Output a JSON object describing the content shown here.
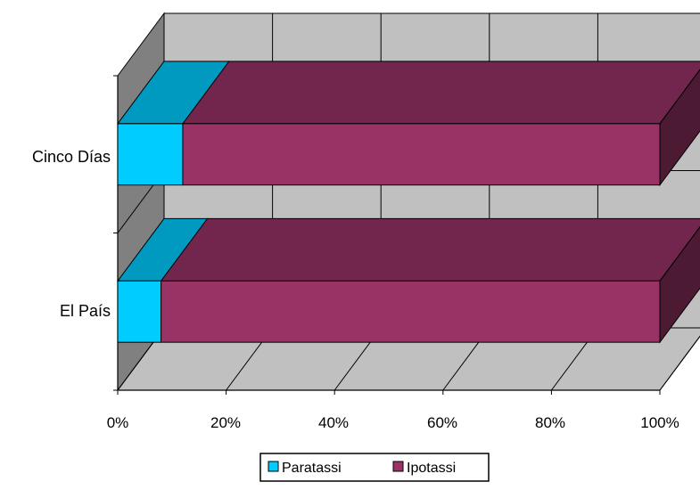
{
  "chart_data": {
    "type": "bar",
    "orientation": "horizontal",
    "stacking": "percent",
    "three_d": true,
    "categories": [
      "El País",
      "Cinco Días"
    ],
    "series": [
      {
        "name": "Paratassi",
        "values": [
          8,
          12
        ],
        "color": "#00ccff"
      },
      {
        "name": "Ipotassi",
        "values": [
          92,
          88
        ],
        "color": "#993366"
      }
    ],
    "x_ticks": [
      "0%",
      "20%",
      "40%",
      "60%",
      "80%",
      "100%"
    ],
    "xlim": [
      0,
      100
    ],
    "grid": true,
    "legend": {
      "position": "bottom",
      "items": [
        {
          "label": "Paratassi",
          "color": "#00ccff"
        },
        {
          "label": "Ipotassi",
          "color": "#993366"
        }
      ]
    },
    "wall_color": "#c0c0c0",
    "side_wall_color": "#808080"
  }
}
